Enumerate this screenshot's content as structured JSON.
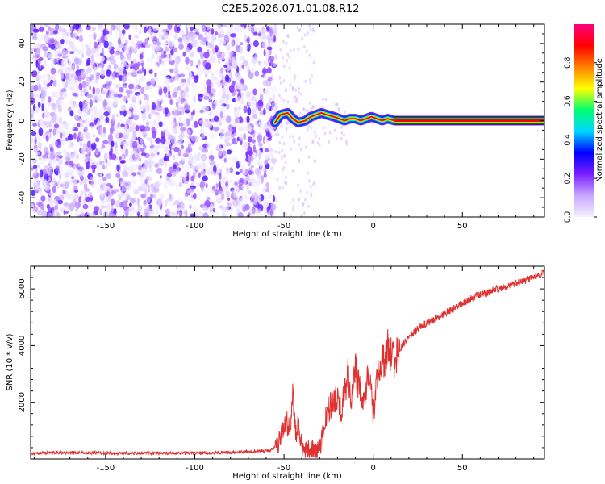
{
  "title": "C2E5.2026.071.01.08.R12",
  "chart_data": [
    {
      "type": "heatmap",
      "xlabel": "Height of straight line (km)",
      "ylabel": "Frequency (Hz)",
      "xlim": [
        -192,
        96
      ],
      "ylim": [
        -50,
        50
      ],
      "xticks": [
        -150,
        -100,
        -50,
        0,
        50
      ],
      "xtick_labels": [
        "-150",
        "-100",
        "-50",
        "0",
        "50"
      ],
      "yticks": [
        40,
        20,
        0,
        -20,
        -40
      ],
      "ytick_labels": [
        "40",
        "20",
        "0",
        "-20",
        "-40"
      ],
      "colorbar": {
        "label": "Normalized spectral amplitude",
        "range": [
          0,
          1
        ],
        "ticks": [
          0.0,
          0.2,
          0.4,
          0.6,
          0.8
        ],
        "tick_labels": [
          "0.0",
          "0.2",
          "0.4",
          "0.6",
          "0.8"
        ],
        "colors": [
          "#f4f0ff",
          "#c9a8ff",
          "#7a1fff",
          "#0000ff",
          "#00d8ff",
          "#00ff70",
          "#ffff00",
          "#ff8000",
          "#ff0000",
          "#ff0080"
        ]
      },
      "regions": [
        {
          "x_range": [
            -192,
            -55
          ],
          "kind": "noise",
          "amplitude": [
            0.0,
            0.25
          ]
        },
        {
          "x_range": [
            -55,
            12
          ],
          "kind": "tone",
          "center_freq": 1,
          "amplitude": [
            0.3,
            0.85
          ]
        },
        {
          "x_range": [
            12,
            96
          ],
          "kind": "tone",
          "center_freq": 0,
          "amplitude": [
            0.85,
            1.0
          ]
        }
      ],
      "tone_track": [
        [
          -55,
          -1
        ],
        [
          -52,
          3
        ],
        [
          -48,
          4
        ],
        [
          -45,
          1
        ],
        [
          -42,
          -1
        ],
        [
          -38,
          0
        ],
        [
          -35,
          2
        ],
        [
          -32,
          3
        ],
        [
          -29,
          4
        ],
        [
          -26,
          3
        ],
        [
          -22,
          2
        ],
        [
          -19,
          1
        ],
        [
          -16,
          0
        ],
        [
          -13,
          1
        ],
        [
          -10,
          1
        ],
        [
          -7,
          0
        ],
        [
          -4,
          1
        ],
        [
          -1,
          2
        ],
        [
          2,
          1
        ],
        [
          5,
          0
        ],
        [
          8,
          1
        ],
        [
          12,
          0
        ],
        [
          96,
          0
        ]
      ]
    },
    {
      "type": "line",
      "xlabel": "Height of straight line (km)",
      "ylabel": "SNR (10 * v/v)",
      "xlim": [
        -192,
        96
      ],
      "ylim": [
        0,
        6800
      ],
      "xticks": [
        -150,
        -100,
        -50,
        0,
        50
      ],
      "xtick_labels": [
        "-150",
        "-100",
        "-50",
        "0",
        "50"
      ],
      "yticks": [
        2000,
        4000,
        6000
      ],
      "ytick_labels": [
        "2000",
        "4000",
        "6000"
      ],
      "series": [
        {
          "color": "#e03030",
          "x": [
            -192,
            -170,
            -150,
            -130,
            -110,
            -90,
            -70,
            -58,
            -54,
            -51,
            -49,
            -47,
            -46,
            -45,
            -44,
            -43,
            -42,
            -41,
            -40,
            -38,
            -35,
            -32,
            -30,
            -28,
            -26,
            -24,
            -22,
            -20,
            -18,
            -16,
            -14,
            -12,
            -10,
            -8,
            -6,
            -4,
            -2,
            0,
            2,
            4,
            6,
            8,
            10,
            12,
            15,
            20,
            25,
            30,
            40,
            50,
            60,
            70,
            80,
            90,
            96
          ],
          "y": [
            200,
            230,
            210,
            200,
            210,
            220,
            260,
            300,
            500,
            900,
            1300,
            1100,
            1400,
            2600,
            1300,
            900,
            1200,
            700,
            500,
            350,
            300,
            250,
            400,
            900,
            1600,
            1900,
            2000,
            2200,
            1500,
            2400,
            3000,
            2000,
            3100,
            2600,
            1800,
            2500,
            3000,
            1500,
            2600,
            3300,
            3500,
            3900,
            3700,
            3500,
            3900,
            4300,
            4600,
            4800,
            5100,
            5500,
            5800,
            6000,
            6200,
            6400,
            6550
          ]
        }
      ]
    }
  ]
}
